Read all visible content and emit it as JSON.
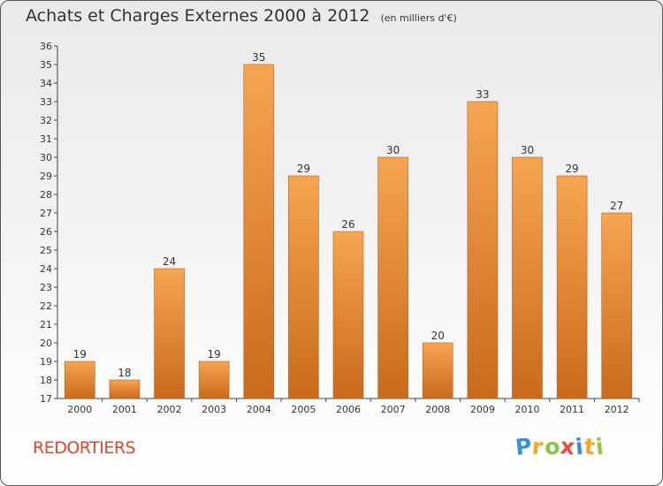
{
  "title": "Achats et Charges Externes 2000 à 2012",
  "subtitle": "(en milliers d'€)",
  "commune": "REDORTIERS",
  "logo": {
    "letters": [
      "P",
      "r",
      "o",
      "x",
      "i",
      "t",
      "i"
    ],
    "colors": [
      "#3a8fd6",
      "#f5a623",
      "#8cc63f",
      "#e94b3c",
      "#3a8fd6",
      "#f5a623",
      "#8cc63f"
    ]
  },
  "colors": {
    "bar_top": "#f6a552",
    "bar_bottom": "#c96a1c",
    "commune_text": "#e0462a"
  },
  "chart_data": {
    "type": "bar",
    "categories": [
      "2000",
      "2001",
      "2002",
      "2003",
      "2004",
      "2005",
      "2006",
      "2007",
      "2008",
      "2009",
      "2010",
      "2011",
      "2012"
    ],
    "values": [
      19,
      18,
      24,
      19,
      35,
      29,
      26,
      30,
      20,
      33,
      30,
      29,
      27
    ],
    "ylim": [
      17,
      36
    ],
    "yticks": [
      17,
      18,
      19,
      20,
      21,
      22,
      23,
      24,
      25,
      26,
      27,
      28,
      29,
      30,
      31,
      32,
      33,
      34,
      35,
      36
    ],
    "grid": false,
    "data_labels": true
  }
}
